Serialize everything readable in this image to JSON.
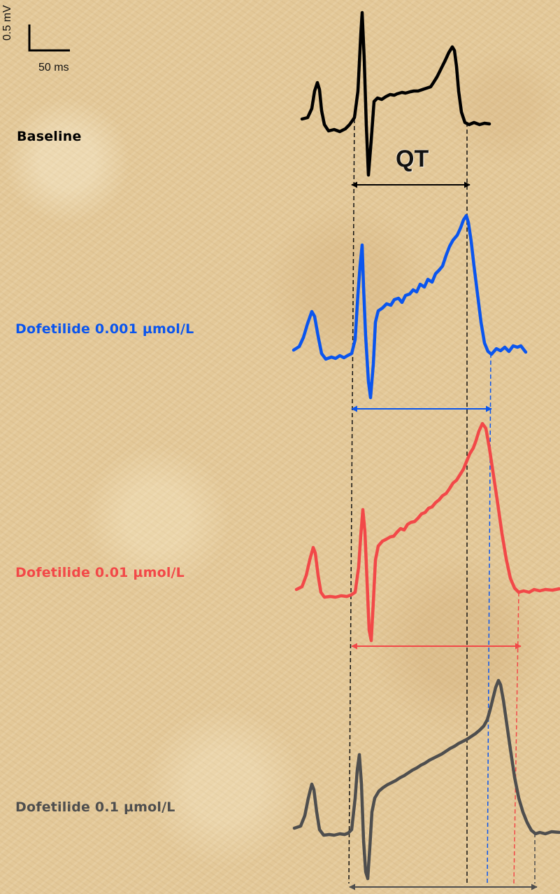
{
  "scale_bar": {
    "voltage": "0.5 mV",
    "time": "50 ms"
  },
  "qt_label": "QT",
  "traces": [
    {
      "label": "Baseline",
      "color": "#000000"
    },
    {
      "label": "Dofetilide 0.001 µmol/L",
      "color": "#0a55ee"
    },
    {
      "label": "Dofetilide 0.01 µmol/L",
      "color": "#f24848"
    },
    {
      "label": "Dofetilide 0.1 µmol/L",
      "color": "#4e4e4e"
    }
  ]
}
